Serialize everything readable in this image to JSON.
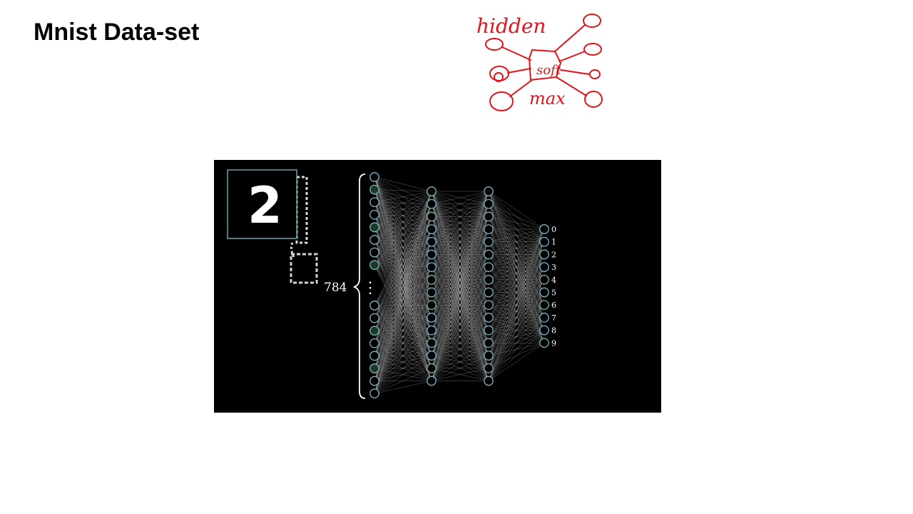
{
  "slide": {
    "title": "Mnist Data-set"
  },
  "annotation": {
    "words": [
      "hidden",
      "soft",
      "max"
    ]
  },
  "figure": {
    "input_digit": "2",
    "input_count": "784",
    "ellipsis": "⋮",
    "output_labels": [
      "0",
      "1",
      "2",
      "3",
      "4",
      "5",
      "6",
      "7",
      "8",
      "9"
    ],
    "colors": {
      "background": "#000000",
      "neuron_stroke": "#7fb8c8",
      "connection": "#cfcfcf",
      "highlight_box": "#6aa3ad",
      "annotation_ink": "#e0141c"
    }
  }
}
